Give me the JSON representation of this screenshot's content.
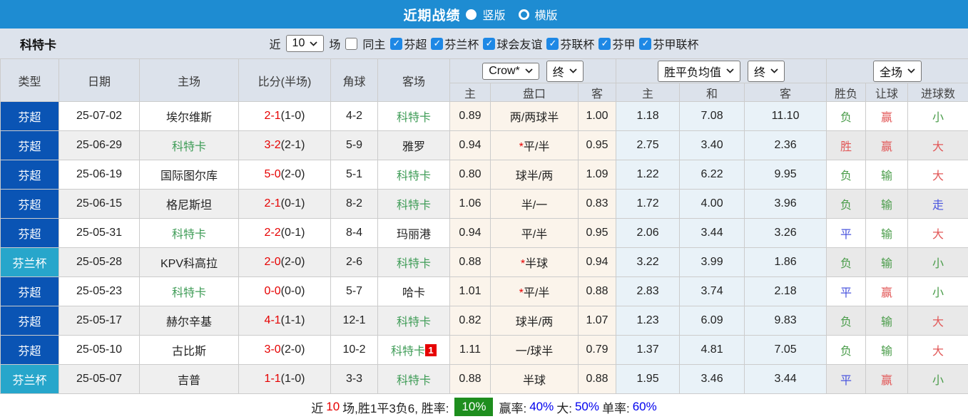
{
  "icons": {
    "check": "✓"
  },
  "topbar": {
    "title": "近期战绩",
    "radio_vertical": "竖版",
    "radio_horizontal": "横版"
  },
  "filters": {
    "team": "科特卡",
    "near_label": "近",
    "near_value": "10",
    "games_label": "场",
    "same_venue_label": "同主",
    "leagues": [
      "芬超",
      "芬兰杯",
      "球会友谊",
      "芬联杯",
      "芬甲",
      "芬甲联杯"
    ]
  },
  "header": {
    "static_cols": [
      "类型",
      "日期",
      "主场",
      "比分(半场)",
      "角球",
      "客场"
    ],
    "odds_dropdown": "Crow*",
    "odds_state_dropdown": "终",
    "avg_dropdown": "胜平负均值",
    "avg_state_dropdown": "终",
    "result_dropdown": "全场",
    "odds_subcols": [
      "主",
      "盘口",
      "客"
    ],
    "avg_subcols": [
      "主",
      "和",
      "客"
    ],
    "result_subcols": [
      "胜负",
      "让球",
      "进球数"
    ]
  },
  "table": {
    "rows": [
      {
        "type": "芬超",
        "type_class": "blue",
        "date": "25-07-02",
        "home": "埃尔维斯",
        "home_green": false,
        "score": "2-1",
        "half": "(1-0)",
        "corner": "4-2",
        "away": "科特卡",
        "away_green": true,
        "away_badge": "",
        "o_home": "0.89",
        "handicap": "两/两球半",
        "handicap_star": false,
        "o_away": "1.00",
        "avg_win": "1.18",
        "avg_draw": "7.08",
        "avg_lose": "11.10",
        "res_outcome": "负",
        "res_outcome_c": "green",
        "res_handicap": "赢",
        "res_handicap_c": "red",
        "res_goals": "小",
        "res_goals_c": "green"
      },
      {
        "type": "芬超",
        "type_class": "blue",
        "date": "25-06-29",
        "home": "科特卡",
        "home_green": true,
        "score": "3-2",
        "half": "(2-1)",
        "corner": "5-9",
        "away": "雅罗",
        "away_green": false,
        "away_badge": "",
        "o_home": "0.94",
        "handicap": "平/半",
        "handicap_star": true,
        "o_away": "0.95",
        "avg_win": "2.75",
        "avg_draw": "3.40",
        "avg_lose": "2.36",
        "res_outcome": "胜",
        "res_outcome_c": "red",
        "res_handicap": "赢",
        "res_handicap_c": "red",
        "res_goals": "大",
        "res_goals_c": "red"
      },
      {
        "type": "芬超",
        "type_class": "blue",
        "date": "25-06-19",
        "home": "国际图尔库",
        "home_green": false,
        "score": "5-0",
        "half": "(2-0)",
        "corner": "5-1",
        "away": "科特卡",
        "away_green": true,
        "away_badge": "",
        "o_home": "0.80",
        "handicap": "球半/两",
        "handicap_star": false,
        "o_away": "1.09",
        "avg_win": "1.22",
        "avg_draw": "6.22",
        "avg_lose": "9.95",
        "res_outcome": "负",
        "res_outcome_c": "green",
        "res_handicap": "输",
        "res_handicap_c": "green",
        "res_goals": "大",
        "res_goals_c": "red"
      },
      {
        "type": "芬超",
        "type_class": "blue",
        "date": "25-06-15",
        "home": "格尼斯坦",
        "home_green": false,
        "score": "2-1",
        "half": "(0-1)",
        "corner": "8-2",
        "away": "科特卡",
        "away_green": true,
        "away_badge": "",
        "o_home": "1.06",
        "handicap": "半/一",
        "handicap_star": false,
        "o_away": "0.83",
        "avg_win": "1.72",
        "avg_draw": "4.00",
        "avg_lose": "3.96",
        "res_outcome": "负",
        "res_outcome_c": "green",
        "res_handicap": "输",
        "res_handicap_c": "green",
        "res_goals": "走",
        "res_goals_c": "blue"
      },
      {
        "type": "芬超",
        "type_class": "blue",
        "date": "25-05-31",
        "home": "科特卡",
        "home_green": true,
        "score": "2-2",
        "half": "(0-1)",
        "corner": "8-4",
        "away": "玛丽港",
        "away_green": false,
        "away_badge": "",
        "o_home": "0.94",
        "handicap": "平/半",
        "handicap_star": false,
        "o_away": "0.95",
        "avg_win": "2.06",
        "avg_draw": "3.44",
        "avg_lose": "3.26",
        "res_outcome": "平",
        "res_outcome_c": "blue",
        "res_handicap": "输",
        "res_handicap_c": "green",
        "res_goals": "大",
        "res_goals_c": "red"
      },
      {
        "type": "芬兰杯",
        "type_class": "teal",
        "date": "25-05-28",
        "home": "KPV科高拉",
        "home_green": false,
        "score": "2-0",
        "half": "(2-0)",
        "corner": "2-6",
        "away": "科特卡",
        "away_green": true,
        "away_badge": "",
        "o_home": "0.88",
        "handicap": "半球",
        "handicap_star": true,
        "o_away": "0.94",
        "avg_win": "3.22",
        "avg_draw": "3.99",
        "avg_lose": "1.86",
        "res_outcome": "负",
        "res_outcome_c": "green",
        "res_handicap": "输",
        "res_handicap_c": "green",
        "res_goals": "小",
        "res_goals_c": "green"
      },
      {
        "type": "芬超",
        "type_class": "blue",
        "date": "25-05-23",
        "home": "科特卡",
        "home_green": true,
        "score": "0-0",
        "half": "(0-0)",
        "corner": "5-7",
        "away": "哈卡",
        "away_green": false,
        "away_badge": "",
        "o_home": "1.01",
        "handicap": "平/半",
        "handicap_star": true,
        "o_away": "0.88",
        "avg_win": "2.83",
        "avg_draw": "3.74",
        "avg_lose": "2.18",
        "res_outcome": "平",
        "res_outcome_c": "blue",
        "res_handicap": "赢",
        "res_handicap_c": "red",
        "res_goals": "小",
        "res_goals_c": "green"
      },
      {
        "type": "芬超",
        "type_class": "blue",
        "date": "25-05-17",
        "home": "赫尔辛基",
        "home_green": false,
        "score": "4-1",
        "half": "(1-1)",
        "corner": "12-1",
        "away": "科特卡",
        "away_green": true,
        "away_badge": "",
        "o_home": "0.82",
        "handicap": "球半/两",
        "handicap_star": false,
        "o_away": "1.07",
        "avg_win": "1.23",
        "avg_draw": "6.09",
        "avg_lose": "9.83",
        "res_outcome": "负",
        "res_outcome_c": "green",
        "res_handicap": "输",
        "res_handicap_c": "green",
        "res_goals": "大",
        "res_goals_c": "red"
      },
      {
        "type": "芬超",
        "type_class": "blue",
        "date": "25-05-10",
        "home": "古比斯",
        "home_green": false,
        "score": "3-0",
        "half": "(2-0)",
        "corner": "10-2",
        "away": "科特卡",
        "away_green": true,
        "away_badge": "1",
        "o_home": "1.11",
        "handicap": "一/球半",
        "handicap_star": false,
        "o_away": "0.79",
        "avg_win": "1.37",
        "avg_draw": "4.81",
        "avg_lose": "7.05",
        "res_outcome": "负",
        "res_outcome_c": "green",
        "res_handicap": "输",
        "res_handicap_c": "green",
        "res_goals": "大",
        "res_goals_c": "red"
      },
      {
        "type": "芬兰杯",
        "type_class": "teal",
        "date": "25-05-07",
        "home": "吉普",
        "home_green": false,
        "score": "1-1",
        "half": "(1-0)",
        "corner": "3-3",
        "away": "科特卡",
        "away_green": true,
        "away_badge": "",
        "o_home": "0.88",
        "handicap": "半球",
        "handicap_star": false,
        "o_away": "0.88",
        "avg_win": "1.95",
        "avg_draw": "3.46",
        "avg_lose": "3.44",
        "res_outcome": "平",
        "res_outcome_c": "blue",
        "res_handicap": "赢",
        "res_handicap_c": "red",
        "res_goals": "小",
        "res_goals_c": "green"
      }
    ]
  },
  "footer": {
    "prefix": "近",
    "count": "10",
    "mid": "场,胜1平3负6, 胜率:",
    "win_rate": "10%",
    "label_win": "赢率:",
    "val_win": "40%",
    "label_big": "大:",
    "val_big": "50%",
    "label_single": "单率:",
    "val_single": "60%"
  },
  "colors": {
    "topbar": "#1E8CD2",
    "league_blue": "#0A54B4",
    "league_teal": "#27A6CB",
    "header_bg": "#DCE2EB",
    "odds_bg": "#FBF4EB",
    "avg_bg": "#E9F2F8",
    "score_red": "#E60000",
    "team_green": "#3F9C57",
    "result_red": "#E25858",
    "result_green": "#4A9C4A",
    "result_blue": "#4A55DE",
    "rate_box_green": "#1E8E1E",
    "pct_blue": "#0000EE"
  }
}
